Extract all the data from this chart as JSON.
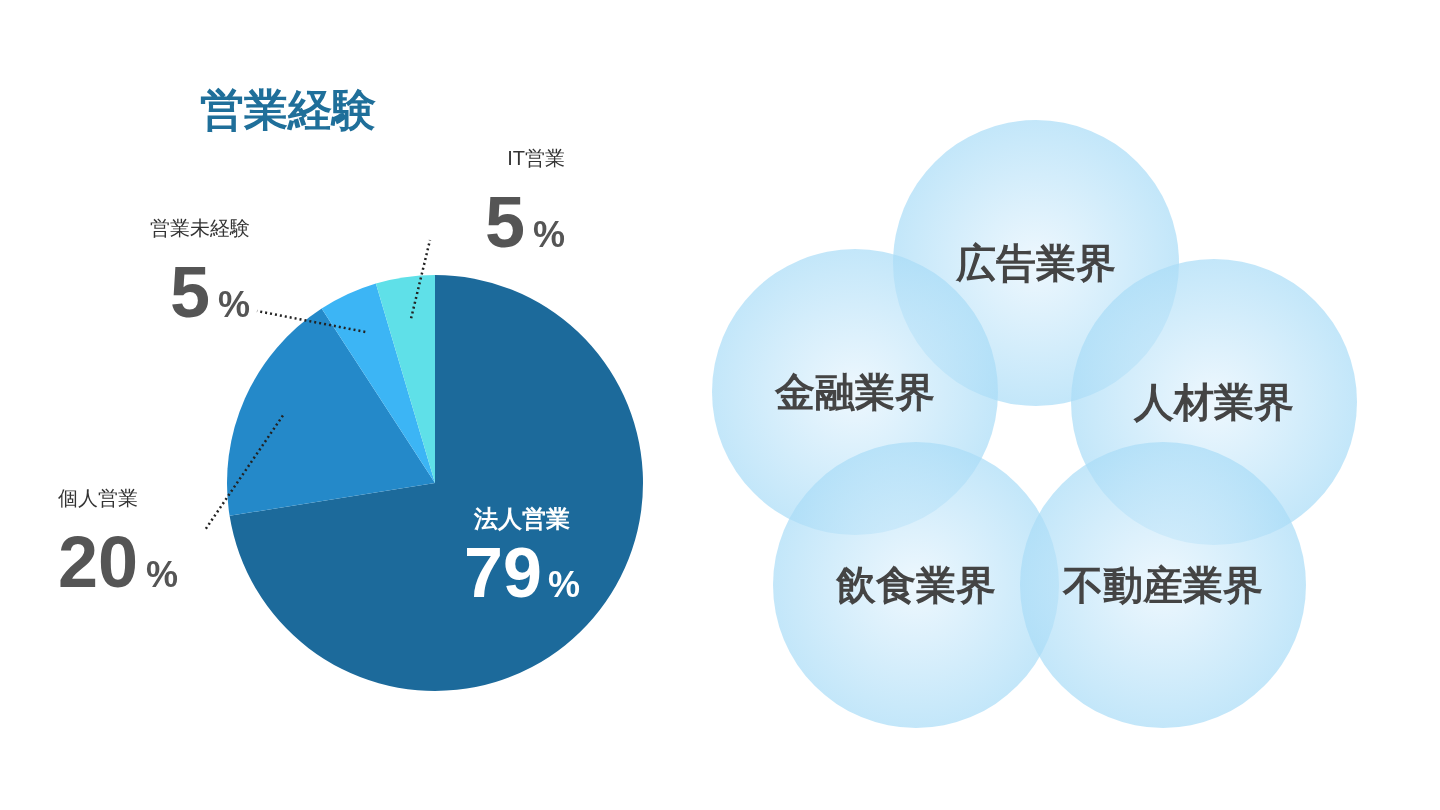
{
  "chart_data": [
    {
      "type": "pie",
      "title": "営業経験",
      "categories": [
        "法人営業",
        "個人営業",
        "営業未経験",
        "IT営業"
      ],
      "values": [
        79,
        20,
        5,
        5
      ],
      "colors": [
        "#1c6a9b",
        "#2489c9",
        "#3cb5f5",
        "#5fe0e8"
      ],
      "value_labels": [
        "79%",
        "20%",
        "5%",
        "5%"
      ]
    },
    {
      "type": "other",
      "annotations": [
        "広告業界",
        "金融業界",
        "人材業界",
        "飲食業界",
        "不動産業界"
      ]
    }
  ]
}
